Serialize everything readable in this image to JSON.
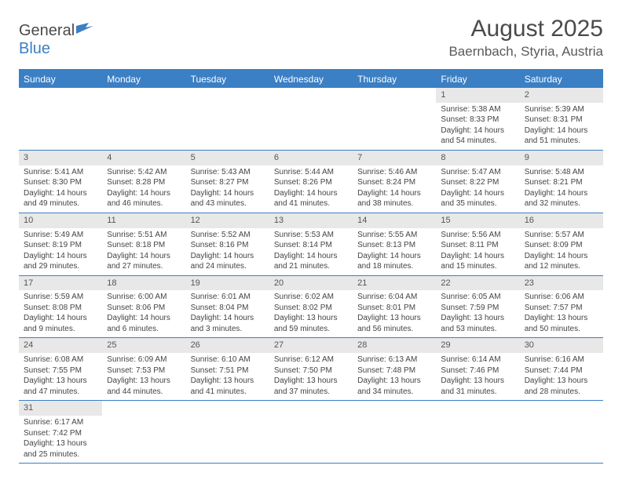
{
  "logo": {
    "general": "General",
    "blue": "Blue"
  },
  "header": {
    "month_title": "August 2025",
    "location": "Baernbach, Styria, Austria"
  },
  "colors": {
    "primary": "#3b7fc4",
    "daynum_bg": "#e8e8e8",
    "text": "#444444",
    "bg": "#ffffff"
  },
  "weekdays": [
    "Sunday",
    "Monday",
    "Tuesday",
    "Wednesday",
    "Thursday",
    "Friday",
    "Saturday"
  ],
  "weeks": [
    [
      null,
      null,
      null,
      null,
      null,
      {
        "n": "1",
        "sunrise": "5:38 AM",
        "sunset": "8:33 PM",
        "daylight": "14 hours and 54 minutes."
      },
      {
        "n": "2",
        "sunrise": "5:39 AM",
        "sunset": "8:31 PM",
        "daylight": "14 hours and 51 minutes."
      }
    ],
    [
      {
        "n": "3",
        "sunrise": "5:41 AM",
        "sunset": "8:30 PM",
        "daylight": "14 hours and 49 minutes."
      },
      {
        "n": "4",
        "sunrise": "5:42 AM",
        "sunset": "8:28 PM",
        "daylight": "14 hours and 46 minutes."
      },
      {
        "n": "5",
        "sunrise": "5:43 AM",
        "sunset": "8:27 PM",
        "daylight": "14 hours and 43 minutes."
      },
      {
        "n": "6",
        "sunrise": "5:44 AM",
        "sunset": "8:26 PM",
        "daylight": "14 hours and 41 minutes."
      },
      {
        "n": "7",
        "sunrise": "5:46 AM",
        "sunset": "8:24 PM",
        "daylight": "14 hours and 38 minutes."
      },
      {
        "n": "8",
        "sunrise": "5:47 AM",
        "sunset": "8:22 PM",
        "daylight": "14 hours and 35 minutes."
      },
      {
        "n": "9",
        "sunrise": "5:48 AM",
        "sunset": "8:21 PM",
        "daylight": "14 hours and 32 minutes."
      }
    ],
    [
      {
        "n": "10",
        "sunrise": "5:49 AM",
        "sunset": "8:19 PM",
        "daylight": "14 hours and 29 minutes."
      },
      {
        "n": "11",
        "sunrise": "5:51 AM",
        "sunset": "8:18 PM",
        "daylight": "14 hours and 27 minutes."
      },
      {
        "n": "12",
        "sunrise": "5:52 AM",
        "sunset": "8:16 PM",
        "daylight": "14 hours and 24 minutes."
      },
      {
        "n": "13",
        "sunrise": "5:53 AM",
        "sunset": "8:14 PM",
        "daylight": "14 hours and 21 minutes."
      },
      {
        "n": "14",
        "sunrise": "5:55 AM",
        "sunset": "8:13 PM",
        "daylight": "14 hours and 18 minutes."
      },
      {
        "n": "15",
        "sunrise": "5:56 AM",
        "sunset": "8:11 PM",
        "daylight": "14 hours and 15 minutes."
      },
      {
        "n": "16",
        "sunrise": "5:57 AM",
        "sunset": "8:09 PM",
        "daylight": "14 hours and 12 minutes."
      }
    ],
    [
      {
        "n": "17",
        "sunrise": "5:59 AM",
        "sunset": "8:08 PM",
        "daylight": "14 hours and 9 minutes."
      },
      {
        "n": "18",
        "sunrise": "6:00 AM",
        "sunset": "8:06 PM",
        "daylight": "14 hours and 6 minutes."
      },
      {
        "n": "19",
        "sunrise": "6:01 AM",
        "sunset": "8:04 PM",
        "daylight": "14 hours and 3 minutes."
      },
      {
        "n": "20",
        "sunrise": "6:02 AM",
        "sunset": "8:02 PM",
        "daylight": "13 hours and 59 minutes."
      },
      {
        "n": "21",
        "sunrise": "6:04 AM",
        "sunset": "8:01 PM",
        "daylight": "13 hours and 56 minutes."
      },
      {
        "n": "22",
        "sunrise": "6:05 AM",
        "sunset": "7:59 PM",
        "daylight": "13 hours and 53 minutes."
      },
      {
        "n": "23",
        "sunrise": "6:06 AM",
        "sunset": "7:57 PM",
        "daylight": "13 hours and 50 minutes."
      }
    ],
    [
      {
        "n": "24",
        "sunrise": "6:08 AM",
        "sunset": "7:55 PM",
        "daylight": "13 hours and 47 minutes."
      },
      {
        "n": "25",
        "sunrise": "6:09 AM",
        "sunset": "7:53 PM",
        "daylight": "13 hours and 44 minutes."
      },
      {
        "n": "26",
        "sunrise": "6:10 AM",
        "sunset": "7:51 PM",
        "daylight": "13 hours and 41 minutes."
      },
      {
        "n": "27",
        "sunrise": "6:12 AM",
        "sunset": "7:50 PM",
        "daylight": "13 hours and 37 minutes."
      },
      {
        "n": "28",
        "sunrise": "6:13 AM",
        "sunset": "7:48 PM",
        "daylight": "13 hours and 34 minutes."
      },
      {
        "n": "29",
        "sunrise": "6:14 AM",
        "sunset": "7:46 PM",
        "daylight": "13 hours and 31 minutes."
      },
      {
        "n": "30",
        "sunrise": "6:16 AM",
        "sunset": "7:44 PM",
        "daylight": "13 hours and 28 minutes."
      }
    ],
    [
      {
        "n": "31",
        "sunrise": "6:17 AM",
        "sunset": "7:42 PM",
        "daylight": "13 hours and 25 minutes."
      },
      null,
      null,
      null,
      null,
      null,
      null
    ]
  ],
  "labels": {
    "sunrise_prefix": "Sunrise: ",
    "sunset_prefix": "Sunset: ",
    "daylight_prefix": "Daylight: "
  }
}
